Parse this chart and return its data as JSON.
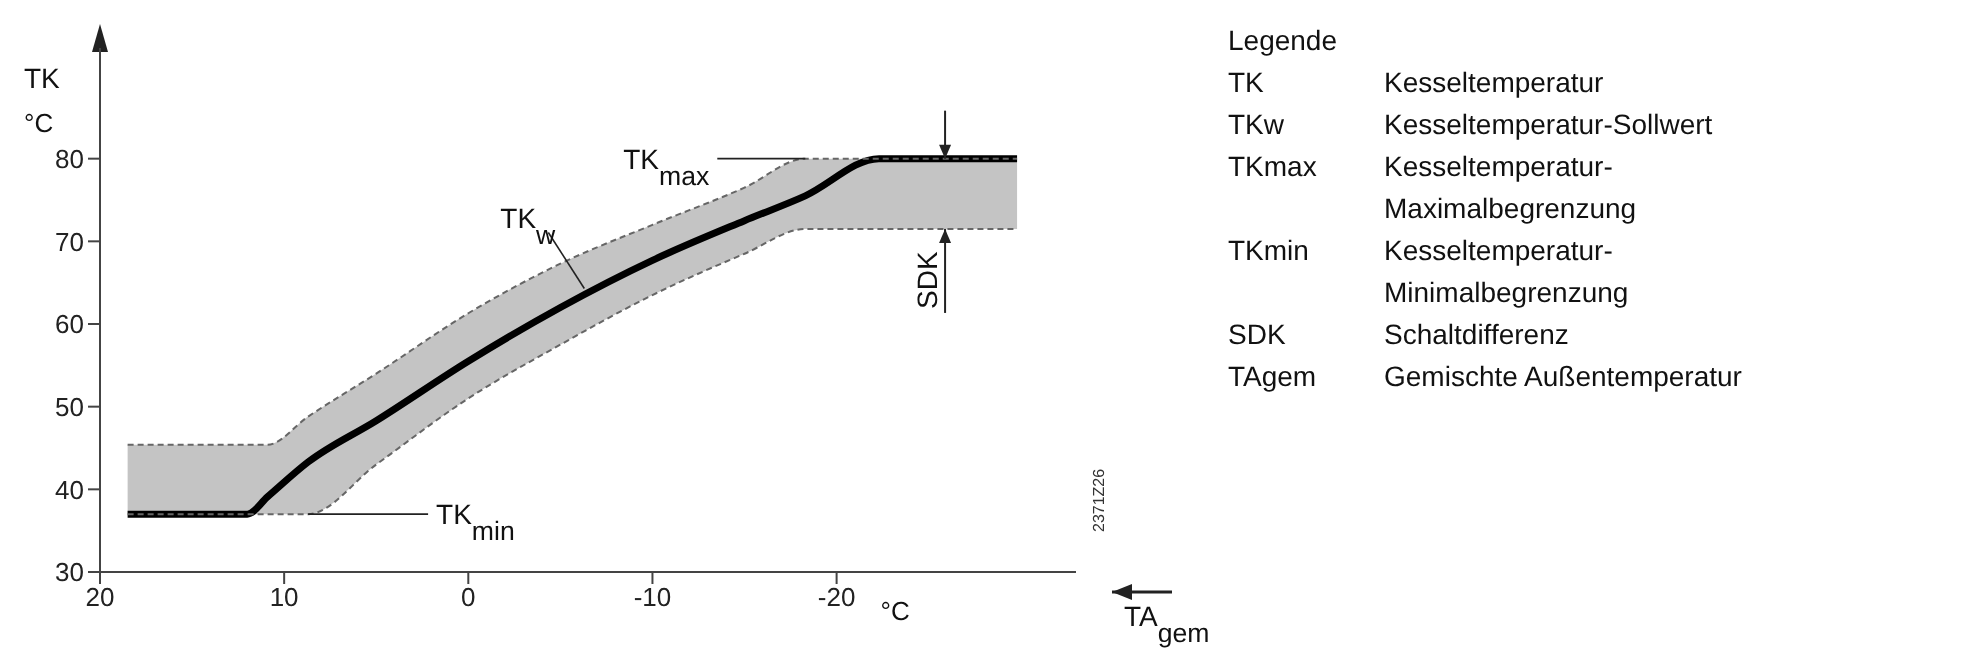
{
  "chart_data": {
    "type": "line",
    "xlabel": "TA$_{gem}$",
    "ylabel": "TK",
    "legend_title": "Legende",
    "x": [
      18.5,
      12,
      10.9,
      8.7,
      5,
      0,
      -5,
      -10,
      -15,
      -18.3,
      -22.3,
      -29.8
    ],
    "series": [
      {
        "color": "#000000",
        "line_style": "solid",
        "values": [
          37,
          37,
          39.1,
          43.3,
          48.3,
          55.5,
          62,
          67.7,
          72.5,
          75.5,
          80,
          80
        ],
        "lower": [
          37,
          37,
          37,
          37,
          43,
          51,
          57.5,
          63.5,
          68.5,
          71.5,
          71.5,
          71.5
        ],
        "upper": [
          45.4,
          45.4,
          45.4,
          48.8,
          54,
          61.3,
          67.3,
          72,
          76.5,
          80,
          80,
          80
        ]
      },
      {
        "color": "#666666",
        "line_style": "dashed",
        "values": [
          45.4,
          45.4,
          45.4,
          48.8,
          54,
          61.3,
          67.3,
          72,
          76.5,
          80,
          80,
          80
        ]
      },
      {
        "color": "#666666",
        "line_style": "dashed",
        "values": [
          37,
          37,
          37,
          37,
          43,
          51,
          57.5,
          63.5,
          68.5,
          71.5,
          71.5,
          71.5
        ]
      }
    ],
    "xlim": [
      20,
      -33
    ],
    "xticks": [
      20,
      10,
      0,
      -10,
      -20
    ],
    "ylim": [
      30,
      90
    ],
    "yticks": [
      30,
      40,
      50,
      60,
      70,
      80
    ],
    "annotations": [
      {
        "text": "TK$_{max}$",
        "x": -18.3,
        "y": 80
      },
      {
        "text": "TK$_{w}$",
        "x": -6.3,
        "y": 64.3
      },
      {
        "text": "TK$_{min}$",
        "x": 8.7,
        "y": 37
      },
      "SDK",
      "°C",
      "°C",
      "2371Z26",
      "TK Kesseltemperatur",
      "TKw Kesseltemperatur-Sollwert",
      "TKmax Kesseltemperatur-Maximalbegrenzung",
      "TKmin Kesseltemperatur-Minimalbegrenzung",
      "SDK Schaltdifferenz",
      "TAgem Gemischte Außentemperatur"
    ]
  }
}
